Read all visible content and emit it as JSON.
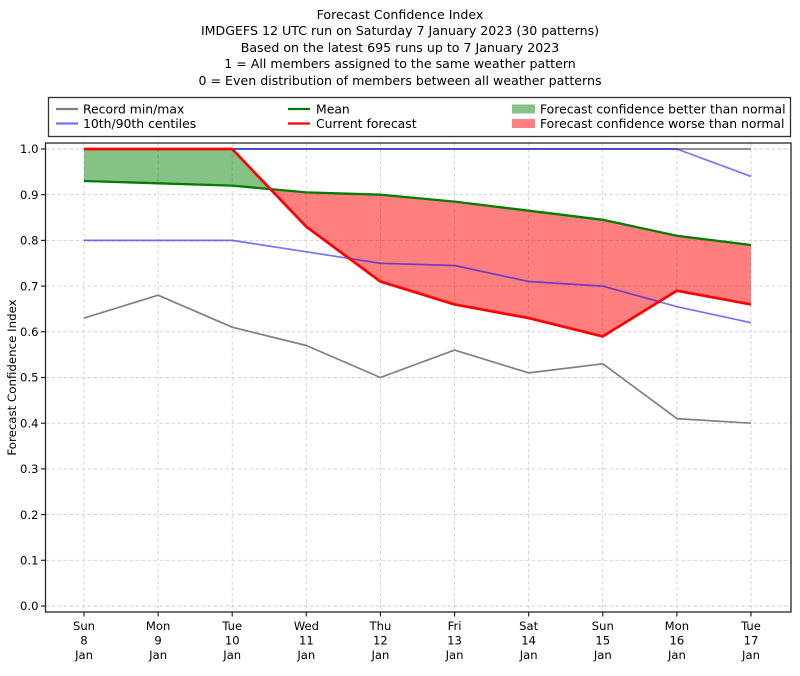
{
  "title": {
    "lines": [
      "Forecast Confidence Index",
      "IMDGEFS 12 UTC run on Saturday 7 January 2023 (30 patterns)",
      "Based on the latest 695 runs up to 7 January 2023",
      "1 = All members assigned to the same weather pattern",
      "0 = Even distribution of members between all weather patterns"
    ]
  },
  "legend": {
    "record_minmax": "Record min/max",
    "centiles": "10th/90th centiles",
    "mean": "Mean",
    "current": "Current forecast",
    "better": "Forecast confidence better than normal",
    "worse": "Forecast confidence worse than normal"
  },
  "colors": {
    "record_line": "#808080",
    "centile_line": "#0000ff",
    "centile_opacity": 0.55,
    "mean_line": "#007d00",
    "current_line": "#ff0000",
    "fill_better": "#008000",
    "fill_better_opacity": 0.48,
    "fill_worse": "#ff0000",
    "fill_worse_opacity": 0.5,
    "grid": "#cfcfcf",
    "spine": "#262626",
    "text": "#000000"
  },
  "chart_data": {
    "type": "line",
    "title": "Forecast Confidence Index",
    "xlabel": "",
    "ylabel": "Forecast Confidence Index",
    "ylim": [
      0.0,
      1.0
    ],
    "ytick_step": 0.1,
    "grid": true,
    "legend_position": "top",
    "x_labels": [
      {
        "dow": "Sun",
        "day": "8",
        "month": "Jan"
      },
      {
        "dow": "Mon",
        "day": "9",
        "month": "Jan"
      },
      {
        "dow": "Tue",
        "day": "10",
        "month": "Jan"
      },
      {
        "dow": "Wed",
        "day": "11",
        "month": "Jan"
      },
      {
        "dow": "Thu",
        "day": "12",
        "month": "Jan"
      },
      {
        "dow": "Fri",
        "day": "13",
        "month": "Jan"
      },
      {
        "dow": "Sat",
        "day": "14",
        "month": "Jan"
      },
      {
        "dow": "Sun",
        "day": "15",
        "month": "Jan"
      },
      {
        "dow": "Mon",
        "day": "16",
        "month": "Jan"
      },
      {
        "dow": "Tue",
        "day": "17",
        "month": "Jan"
      }
    ],
    "series": [
      {
        "name": "Record max",
        "legend": "Record min/max",
        "color_key": "record_line",
        "values": [
          1.0,
          1.0,
          1.0,
          1.0,
          1.0,
          1.0,
          1.0,
          1.0,
          1.0,
          1.0
        ]
      },
      {
        "name": "Record min",
        "legend": "Record min/max",
        "color_key": "record_line",
        "values": [
          0.63,
          0.68,
          0.61,
          0.57,
          0.5,
          0.56,
          0.51,
          0.53,
          0.41,
          0.4
        ]
      },
      {
        "name": "90th centile",
        "legend": "10th/90th centiles",
        "color_key": "centile_line",
        "values": [
          1.0,
          1.0,
          1.0,
          1.0,
          1.0,
          1.0,
          1.0,
          1.0,
          1.0,
          0.94
        ]
      },
      {
        "name": "10th centile",
        "legend": "10th/90th centiles",
        "color_key": "centile_line",
        "values": [
          0.8,
          0.8,
          0.8,
          0.775,
          0.75,
          0.745,
          0.71,
          0.7,
          0.655,
          0.62
        ]
      },
      {
        "name": "Mean",
        "legend": "Mean",
        "color_key": "mean_line",
        "values": [
          0.93,
          0.925,
          0.92,
          0.905,
          0.9,
          0.885,
          0.865,
          0.845,
          0.81,
          0.79
        ]
      },
      {
        "name": "Current forecast",
        "legend": "Current forecast",
        "color_key": "current_line",
        "values": [
          1.0,
          1.0,
          1.0,
          0.83,
          0.71,
          0.66,
          0.63,
          0.59,
          0.69,
          0.66
        ]
      }
    ],
    "fills": [
      {
        "name": "Forecast confidence better than normal",
        "between": [
          "Current forecast",
          "Mean"
        ],
        "when": "current_above_mean",
        "color_key": "fill_better"
      },
      {
        "name": "Forecast confidence worse than normal",
        "between": [
          "Current forecast",
          "Mean"
        ],
        "when": "current_below_mean",
        "color_key": "fill_worse"
      }
    ]
  }
}
